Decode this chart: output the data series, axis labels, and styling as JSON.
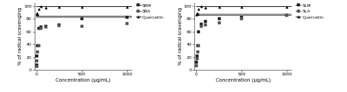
{
  "left": {
    "xlabel": "Concentration (μg/mL)",
    "ylabel": "% of radical scavenging",
    "ylim": [
      0,
      105
    ],
    "xlim": [
      -20,
      1050
    ],
    "series": {
      "SBM": {
        "x": [
          3.125,
          6.25,
          12.5,
          25,
          50,
          100,
          250,
          500,
          1000
        ],
        "y": [
          8,
          22,
          38,
          65,
          67,
          68,
          70,
          80,
          82
        ],
        "marker": "s",
        "color": "#222222",
        "curve_max": 84
      },
      "SBA": {
        "x": [
          3.125,
          6.25,
          12.5,
          25,
          50,
          100,
          250,
          500,
          1000
        ],
        "y": [
          5,
          14,
          28,
          38,
          65,
          67,
          69,
          68,
          73
        ],
        "marker": "s",
        "color": "#555555",
        "curve_max": 82
      },
      "Quercetin": {
        "x": [
          3.125,
          6.25,
          12.5,
          25,
          50,
          100,
          250,
          500,
          1000
        ],
        "y": [
          87,
          89,
          88,
          95,
          100,
          97,
          98,
          98,
          98
        ],
        "marker": "^",
        "color": "#000000",
        "curve_max": 99
      }
    },
    "legend_labels": [
      "SBM",
      "SBA",
      "Quercetin"
    ]
  },
  "right": {
    "xlabel": "Concentration (μg/mL)",
    "ylabel": "% of radical scavenging",
    "ylim": [
      0,
      105
    ],
    "xlim": [
      -20,
      1050
    ],
    "series": {
      "SLM": {
        "x": [
          3.125,
          6.25,
          12.5,
          25,
          50,
          100,
          250,
          500,
          1000
        ],
        "y": [
          12,
          22,
          38,
          60,
          72,
          76,
          80,
          82,
          85
        ],
        "marker": "s",
        "color": "#222222",
        "curve_max": 87
      },
      "SLA": {
        "x": [
          3.125,
          6.25,
          12.5,
          25,
          50,
          100,
          250,
          500,
          1000
        ],
        "y": [
          7,
          17,
          28,
          38,
          68,
          70,
          74,
          80,
          85
        ],
        "marker": "s",
        "color": "#555555",
        "curve_max": 85
      },
      "Quercetin": {
        "x": [
          3.125,
          6.25,
          12.5,
          25,
          50,
          100,
          250,
          500,
          1000
        ],
        "y": [
          87,
          89,
          88,
          95,
          100,
          97,
          98,
          98,
          98
        ],
        "marker": "^",
        "color": "#000000",
        "curve_max": 99
      }
    },
    "legend_labels": [
      "SLM",
      "SLA",
      "Quercetin"
    ]
  },
  "bg_color": "#ffffff",
  "tick_color": "#333333",
  "font_size": 5.0,
  "marker_size": 2.5,
  "line_width": 0.7
}
